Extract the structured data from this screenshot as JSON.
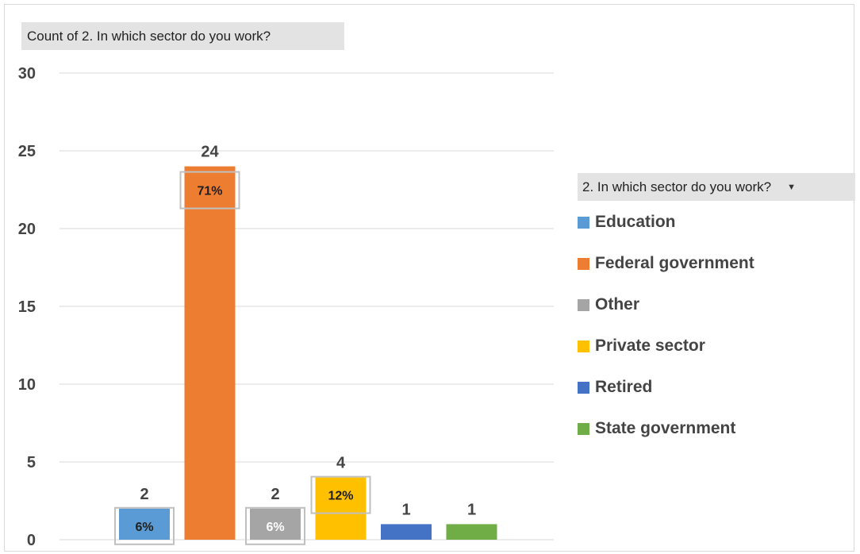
{
  "field_button": {
    "label": "Count of 2. In which sector do you work?"
  },
  "legend": {
    "title": "2. In which sector do you work?",
    "caret_icon": "dropdown-caret-icon",
    "items": [
      {
        "label": "Education",
        "color": "#5b9bd5"
      },
      {
        "label": "Federal government",
        "color": "#ed7d31"
      },
      {
        "label": "Other",
        "color": "#a5a5a5"
      },
      {
        "label": "Private sector",
        "color": "#ffc000"
      },
      {
        "label": "Retired",
        "color": "#4472c4"
      },
      {
        "label": "State government",
        "color": "#70ad47"
      }
    ]
  },
  "chart_data": {
    "type": "bar",
    "title": "",
    "xlabel": "",
    "ylabel": "",
    "ylim": [
      0,
      30
    ],
    "yticks": [
      0,
      5,
      10,
      15,
      20,
      25,
      30
    ],
    "grid": true,
    "legend_placement": "right",
    "categories": [
      "Education",
      "Federal government",
      "Other",
      "Private sector",
      "Retired",
      "State government"
    ],
    "values": [
      2,
      24,
      2,
      4,
      1,
      1
    ],
    "value_labels": [
      "2",
      "24",
      "2",
      "4",
      "1",
      "1"
    ],
    "percent_labels": [
      "6%",
      "71%",
      "6%",
      "12%",
      "",
      ""
    ],
    "colors": [
      "#5b9bd5",
      "#ed7d31",
      "#a5a5a5",
      "#ffc000",
      "#4472c4",
      "#70ad47"
    ],
    "percent_label_colors": [
      "#1f1f1f",
      "#1f1f1f",
      "#ffffff",
      "#1f1f1f",
      "",
      ""
    ]
  }
}
